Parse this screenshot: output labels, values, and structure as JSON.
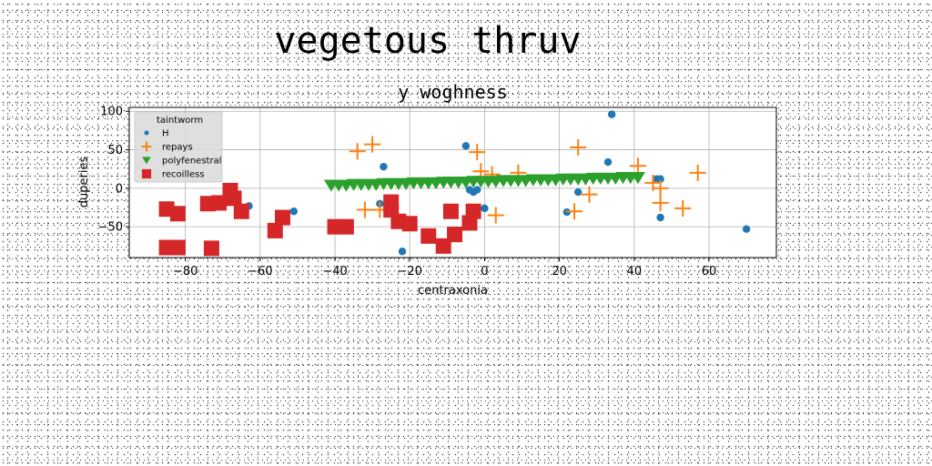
{
  "figure": {
    "suptitle": "vegetous thruv"
  },
  "chart_data": {
    "type": "scatter",
    "title": "y woghness",
    "xlabel": "centraxonia",
    "ylabel": "duperies",
    "xlim": [
      -95,
      78
    ],
    "ylim": [
      -90,
      105
    ],
    "xticks": [
      -80,
      -60,
      -40,
      -20,
      0,
      20,
      40,
      60
    ],
    "yticks": [
      -50,
      0,
      50,
      100
    ],
    "grid": true,
    "legend": {
      "title": "taintworm",
      "placement": "top-left"
    },
    "series": [
      {
        "name": "H",
        "marker": "circle",
        "color": "#1f77b4",
        "points": [
          [
            34,
            96
          ],
          [
            -5,
            55
          ],
          [
            33,
            34
          ],
          [
            -27,
            28
          ],
          [
            47,
            12
          ],
          [
            -63,
            -23
          ],
          [
            -51,
            -30
          ],
          [
            -28,
            -20
          ],
          [
            -22,
            -82
          ],
          [
            25,
            -5
          ],
          [
            22,
            -31
          ],
          [
            46,
            12
          ],
          [
            47,
            -38
          ],
          [
            70,
            -53
          ],
          [
            -4,
            -2
          ],
          [
            -2,
            -2
          ],
          [
            0,
            -26
          ],
          [
            -3,
            -5
          ]
        ]
      },
      {
        "name": "repays",
        "marker": "plus",
        "color": "#ff7f0e",
        "points": [
          [
            -34,
            48
          ],
          [
            -30,
            57
          ],
          [
            25,
            53
          ],
          [
            -2,
            47
          ],
          [
            41,
            29
          ],
          [
            57,
            20
          ],
          [
            45,
            7
          ],
          [
            -1,
            22
          ],
          [
            2,
            18
          ],
          [
            9,
            20
          ],
          [
            28,
            -8
          ],
          [
            47,
            0
          ],
          [
            47,
            -19
          ],
          [
            53,
            -26
          ],
          [
            -32,
            -28
          ],
          [
            -28,
            -28
          ],
          [
            3,
            -35
          ],
          [
            24,
            -30
          ]
        ]
      },
      {
        "name": "polyfenestral",
        "marker": "triangle-down",
        "color": "#2ca02c",
        "points": [
          [
            -41,
            4
          ],
          [
            -39,
            4
          ],
          [
            -37,
            4
          ],
          [
            -35,
            5
          ],
          [
            -33,
            5
          ],
          [
            -31,
            5
          ],
          [
            -29,
            5
          ],
          [
            -27,
            6
          ],
          [
            -25,
            6
          ],
          [
            -23,
            6
          ],
          [
            -21,
            6
          ],
          [
            -19,
            7
          ],
          [
            -17,
            7
          ],
          [
            -15,
            7
          ],
          [
            -13,
            7
          ],
          [
            -11,
            8
          ],
          [
            -9,
            8
          ],
          [
            -7,
            8
          ],
          [
            -5,
            8
          ],
          [
            -3,
            9
          ],
          [
            -1,
            9
          ],
          [
            1,
            9
          ],
          [
            3,
            9
          ],
          [
            5,
            10
          ],
          [
            7,
            10
          ],
          [
            9,
            10
          ],
          [
            11,
            10
          ],
          [
            13,
            11
          ],
          [
            15,
            11
          ],
          [
            17,
            11
          ],
          [
            19,
            11
          ],
          [
            21,
            12
          ],
          [
            23,
            12
          ],
          [
            25,
            12
          ],
          [
            27,
            12
          ],
          [
            29,
            13
          ],
          [
            31,
            13
          ],
          [
            33,
            13
          ],
          [
            35,
            13
          ],
          [
            37,
            14
          ],
          [
            39,
            14
          ],
          [
            41,
            14
          ]
        ]
      },
      {
        "name": "recoilless",
        "marker": "square",
        "color": "#d62728",
        "points": [
          [
            -85,
            -27
          ],
          [
            -82,
            -33
          ],
          [
            -85,
            -77
          ],
          [
            -82,
            -77
          ],
          [
            -73,
            -78
          ],
          [
            -74,
            -20
          ],
          [
            -71,
            -19
          ],
          [
            -68,
            -3
          ],
          [
            -67,
            -13
          ],
          [
            -65,
            -30
          ],
          [
            -56,
            -55
          ],
          [
            -54,
            -38
          ],
          [
            -40,
            -50
          ],
          [
            -37,
            -50
          ],
          [
            -25,
            -18
          ],
          [
            -25,
            -28
          ],
          [
            -23,
            -43
          ],
          [
            -20,
            -46
          ],
          [
            -15,
            -62
          ],
          [
            -11,
            -75
          ],
          [
            -9,
            -30
          ],
          [
            -8,
            -60
          ],
          [
            -4,
            -45
          ],
          [
            -3,
            -30
          ]
        ]
      }
    ]
  }
}
